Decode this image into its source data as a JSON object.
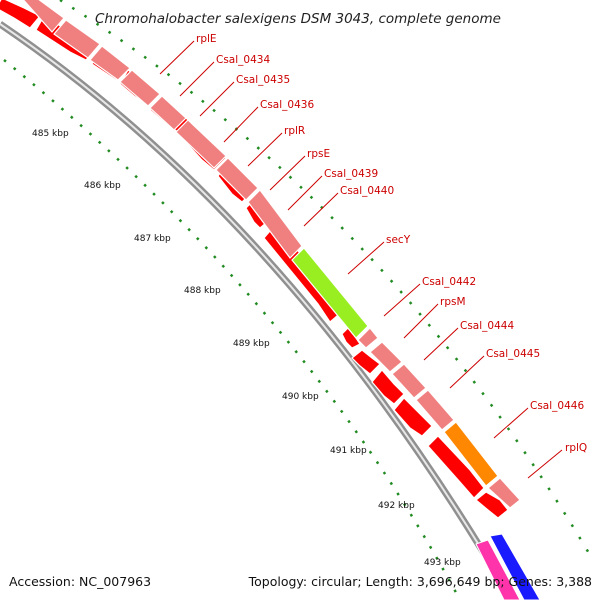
{
  "title": "Chromohalobacter salexigens DSM 3043, complete genome",
  "accession_text": "Accession: NC_007963",
  "topology_text": "Topology: circular; Length: 3,696,649 bp; Genes: 3,388",
  "kbp_ticks": [
    "485 kbp",
    "486 kbp",
    "487 kbp",
    "488 kbp",
    "489 kbp",
    "490 kbp",
    "491 kbp",
    "492 kbp",
    "493 kbp"
  ],
  "gene_labels": [
    "rplE",
    "Csal_0434",
    "Csal_0435",
    "Csal_0436",
    "rplR",
    "rpsE",
    "Csal_0439",
    "Csal_0440",
    "secY",
    "Csal_0442",
    "rpsM",
    "Csal_0444",
    "Csal_0445",
    "Csal_0446",
    "rplQ"
  ],
  "colors": {
    "cds_arrow": "#ff0000",
    "gene_bar": "#f08080",
    "secY_highlight": "#99ee22",
    "Csal_0446_highlight": "#ff8800",
    "backbone": "#909090",
    "tick_dots": "#228b22",
    "label_text": "#cc0000",
    "pink_feature": "#ff33aa",
    "blue_feature": "#1a1aff"
  }
}
